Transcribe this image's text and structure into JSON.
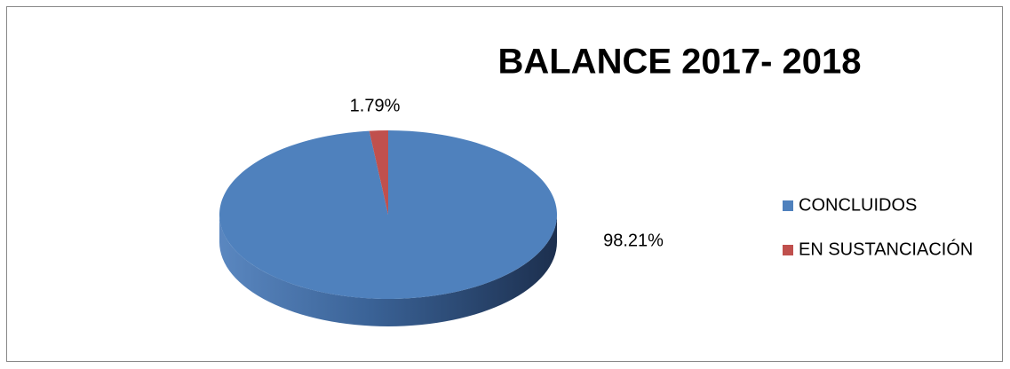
{
  "chart_data": {
    "type": "pie",
    "title": "BALANCE 2017- 2018",
    "categories": [
      "CONCLUIDOS",
      "EN SUSTANCIACIÓN"
    ],
    "values": [
      98.21,
      1.79
    ],
    "value_labels": [
      "98.21%",
      "1.79%"
    ],
    "colors": [
      "#4f81bd",
      "#c0504d"
    ],
    "legend": "right",
    "3d": true
  }
}
